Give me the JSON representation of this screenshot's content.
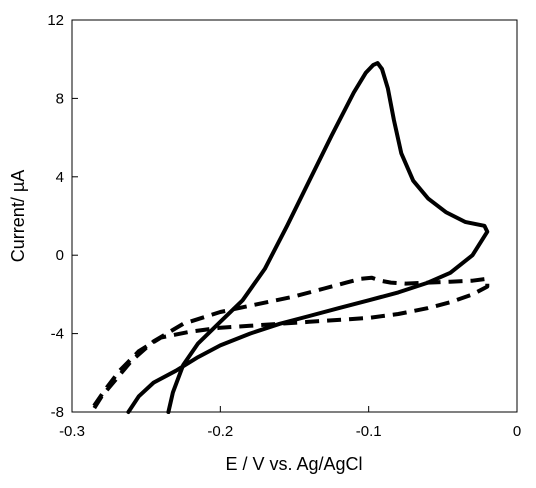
{
  "chart_data": {
    "type": "line",
    "title": "",
    "xlabel": "E / V vs. Ag/AgCl",
    "ylabel": "Current/ µA",
    "xlim": [
      -0.3,
      0
    ],
    "ylim": [
      -8,
      12
    ],
    "xticks": [
      -0.3,
      -0.2,
      -0.1,
      0
    ],
    "xtick_labels": [
      "-0.3",
      "-0.2",
      "-0.1",
      "0"
    ],
    "yticks": [
      -8,
      -4,
      0,
      4,
      8,
      12
    ],
    "ytick_labels": [
      "-8",
      "-4",
      "0",
      "4",
      "8",
      "12"
    ],
    "grid": false,
    "legend": "none",
    "series": [
      {
        "style": "solid",
        "color": "#000000",
        "x": [
          -0.235,
          -0.232,
          -0.225,
          -0.215,
          -0.2,
          -0.185,
          -0.17,
          -0.155,
          -0.14,
          -0.125,
          -0.11,
          -0.102,
          -0.097,
          -0.094,
          -0.091,
          -0.087,
          -0.083,
          -0.078,
          -0.07,
          -0.06,
          -0.048,
          -0.035,
          -0.022,
          -0.02,
          -0.03,
          -0.045,
          -0.06,
          -0.08,
          -0.1,
          -0.12,
          -0.14,
          -0.16,
          -0.18,
          -0.2,
          -0.215,
          -0.23,
          -0.245,
          -0.255,
          -0.262
        ],
        "y": [
          -8.0,
          -7.0,
          -5.6,
          -4.5,
          -3.4,
          -2.3,
          -0.7,
          1.5,
          3.8,
          6.1,
          8.3,
          9.3,
          9.7,
          9.8,
          9.5,
          8.5,
          6.9,
          5.2,
          3.8,
          2.9,
          2.2,
          1.7,
          1.5,
          1.2,
          0.0,
          -0.9,
          -1.4,
          -1.9,
          -2.3,
          -2.7,
          -3.1,
          -3.5,
          -4.0,
          -4.6,
          -5.2,
          -5.9,
          -6.5,
          -7.2,
          -8.0
        ]
      },
      {
        "style": "dashed",
        "color": "#000000",
        "x": [
          -0.285,
          -0.28,
          -0.27,
          -0.26,
          -0.245,
          -0.225,
          -0.2,
          -0.175,
          -0.15,
          -0.13,
          -0.115,
          -0.105,
          -0.098,
          -0.092,
          -0.085,
          -0.075,
          -0.06,
          -0.045,
          -0.03,
          -0.02,
          -0.02,
          -0.03,
          -0.045,
          -0.06,
          -0.08,
          -0.1,
          -0.12,
          -0.14,
          -0.16,
          -0.18,
          -0.2,
          -0.22,
          -0.24,
          -0.255,
          -0.268,
          -0.278,
          -0.288
        ],
        "y": [
          -7.8,
          -7.2,
          -6.3,
          -5.4,
          -4.4,
          -3.5,
          -2.9,
          -2.5,
          -2.1,
          -1.7,
          -1.4,
          -1.2,
          -1.15,
          -1.3,
          -1.4,
          -1.45,
          -1.4,
          -1.35,
          -1.3,
          -1.2,
          -1.6,
          -2.0,
          -2.4,
          -2.7,
          -3.0,
          -3.2,
          -3.3,
          -3.4,
          -3.5,
          -3.6,
          -3.7,
          -3.9,
          -4.2,
          -4.9,
          -5.9,
          -6.9,
          -8.0
        ]
      }
    ]
  }
}
